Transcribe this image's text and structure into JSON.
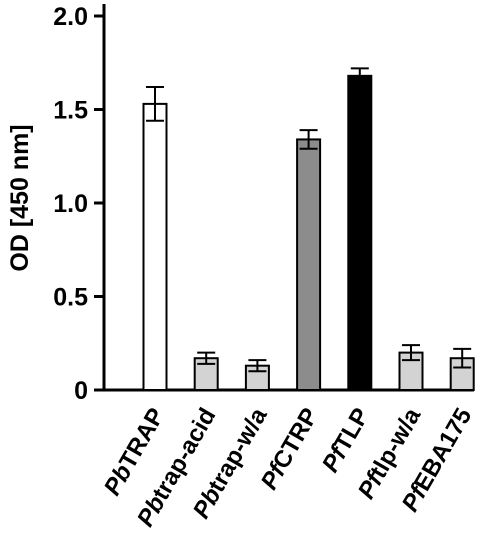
{
  "chart_data": {
    "type": "bar",
    "ylabel": "OD [450 nm]",
    "ylim": [
      0,
      2.0
    ],
    "yticks": [
      0,
      0.5,
      1.0,
      1.5,
      2.0
    ],
    "ytick_labels": [
      "0",
      "0.5",
      "1.0",
      "1.5",
      "2.0"
    ],
    "categories": [
      {
        "italic": "Pb",
        "rest": "TRAP"
      },
      {
        "italic": "Pb",
        "rest": "trap-acid"
      },
      {
        "italic": "Pb",
        "rest": "trap-w/a"
      },
      {
        "italic": "Pf",
        "rest": "CTRP"
      },
      {
        "italic": "Pf",
        "rest": "TLP"
      },
      {
        "italic": "Pf",
        "rest": "tlp-w/a"
      },
      {
        "italic": "Pf",
        "rest": "EBA175"
      }
    ],
    "values": [
      1.53,
      0.17,
      0.13,
      1.34,
      1.68,
      0.2,
      0.17
    ],
    "errors": [
      0.09,
      0.03,
      0.03,
      0.05,
      0.04,
      0.04,
      0.05
    ],
    "colors": [
      "#ffffff",
      "#d3d3d3",
      "#d3d3d3",
      "#8c8c8c",
      "#000000",
      "#d3d3d3",
      "#d3d3d3"
    ],
    "grid": false
  }
}
